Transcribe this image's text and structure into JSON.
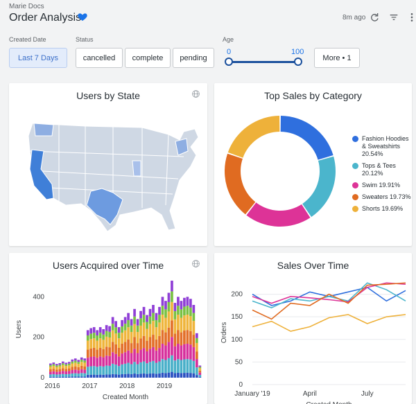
{
  "header": {
    "breadcrumb": "Marie Docs",
    "title": "Order Analysis",
    "updated": "8m ago",
    "colors": {
      "accent": "#1a73e8",
      "favorite": "#1a73e8"
    }
  },
  "filters": {
    "created_date": {
      "label": "Created Date",
      "value": "Last 7 Days"
    },
    "status": {
      "label": "Status",
      "options": [
        "cancelled",
        "complete",
        "pending"
      ]
    },
    "age": {
      "label": "Age",
      "min": "0",
      "max": "100"
    },
    "more": "More • 1"
  },
  "icons": {
    "favorite": "heart-icon",
    "refresh": "refresh-icon",
    "filter": "filter-icon",
    "menu": "more-vert-icon",
    "globe": "globe-icon"
  },
  "cards": {
    "users_by_state": {
      "title": "Users by State"
    },
    "top_sales": {
      "title": "Top Sales by Category"
    },
    "users_acquired": {
      "title": "Users Acquired over Time"
    },
    "sales_over_time": {
      "title": "Sales Over Time"
    }
  },
  "chart_data": [
    {
      "type": "map",
      "title": "Users by State",
      "highlighted_regions": [
        "California",
        "Texas",
        "Washington",
        "New York"
      ],
      "colors": [
        "#cfd8e4",
        "#3f7fd8"
      ]
    },
    {
      "type": "pie",
      "title": "Top Sales by Category",
      "categories": [
        "Fashion Hoodies & Sweatshirts",
        "Tops & Tees",
        "Swim",
        "Sweaters",
        "Shorts"
      ],
      "labels": [
        "Fashion Hoodies & Sweatshirts 20.54%",
        "Tops & Tees 20.12%",
        "Swim 19.91%",
        "Sweaters 19.73%",
        "Shorts 19.69%"
      ],
      "values": [
        20.54,
        20.12,
        19.91,
        19.73,
        19.69
      ],
      "colors": [
        "#2f6fde",
        "#4bb5cc",
        "#dd3397",
        "#e06b21",
        "#eeb13a"
      ],
      "legend": "right"
    },
    {
      "type": "bar",
      "stacked": true,
      "title": "Users Acquired over Time",
      "xlabel": "Created Month",
      "ylabel": "Users",
      "ylim": [
        0,
        480
      ],
      "yticks": [
        "0",
        "200",
        "400"
      ],
      "xticks": [
        "2016",
        "2017",
        "2018",
        "2019"
      ],
      "colors": [
        "#2b52c1",
        "#49b0c9",
        "#d7309c",
        "#e3702a",
        "#efb53c",
        "#7ac143",
        "#8f3fd6"
      ],
      "totals": [
        70,
        75,
        68,
        72,
        80,
        74,
        78,
        90,
        95,
        88,
        100,
        95,
        235,
        245,
        250,
        235,
        250,
        240,
        260,
        255,
        300,
        280,
        250,
        285,
        300,
        320,
        290,
        340,
        290,
        330,
        350,
        310,
        340,
        360,
        320,
        350,
        400,
        380,
        420,
        480,
        370,
        400,
        380,
        395,
        400,
        390,
        360,
        220,
        60
      ]
    },
    {
      "type": "line",
      "title": "Sales Over Time",
      "xlabel": "Created Month",
      "ylabel": "Orders",
      "ylim": [
        0,
        230
      ],
      "yticks": [
        "0",
        "50",
        "100",
        "150",
        "200"
      ],
      "xticks": [
        "January '19",
        "April",
        "July"
      ],
      "series": [
        {
          "color": "#2f6fde",
          "values": [
            200,
            175,
            185,
            205,
            195,
            205,
            215,
            185,
            208
          ]
        },
        {
          "color": "#4bb5cc",
          "values": [
            185,
            170,
            190,
            185,
            195,
            185,
            225,
            210,
            185
          ]
        },
        {
          "color": "#dd3397",
          "values": [
            195,
            180,
            195,
            192,
            188,
            183,
            215,
            225,
            222
          ]
        },
        {
          "color": "#e06b21",
          "values": [
            165,
            145,
            180,
            175,
            200,
            180,
            220,
            222,
            225
          ]
        },
        {
          "color": "#eeb13a",
          "values": [
            128,
            140,
            118,
            128,
            148,
            155,
            135,
            150,
            155
          ]
        }
      ]
    }
  ]
}
